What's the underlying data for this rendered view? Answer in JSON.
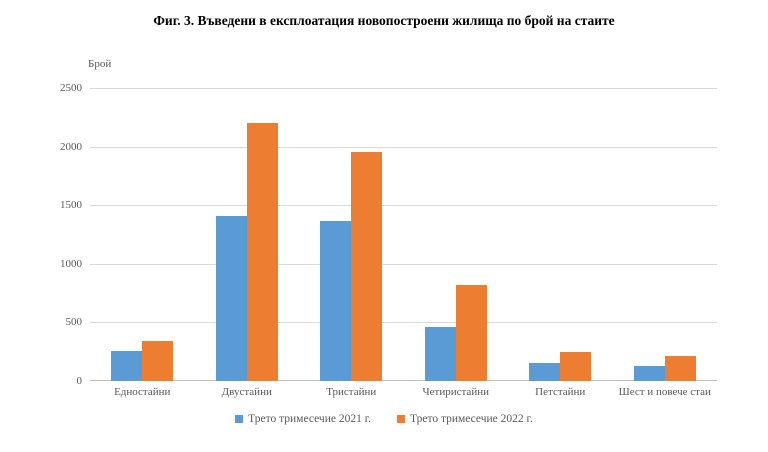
{
  "chart_data": {
    "type": "bar",
    "title": "Фиг. 3. Въведени в експлоатация новопостроени жилища по брой на стаите",
    "ylabel": "Брой",
    "xlabel": "",
    "categories": [
      "Едностайни",
      "Двустайни",
      "Тристайни",
      "Четиристайни",
      "Петстайни",
      "Шест и повече стаи"
    ],
    "series": [
      {
        "name": "Трето тримесечие 2021 г.",
        "color": "#5B9BD5",
        "values": [
          260,
          1410,
          1365,
          460,
          155,
          130
        ]
      },
      {
        "name": "Трето тримесечие 2022 г.",
        "color": "#ED7D31",
        "values": [
          345,
          2200,
          1955,
          815,
          245,
          215
        ]
      }
    ],
    "ylim": [
      0,
      2500
    ],
    "yticks": [
      0,
      500,
      1000,
      1500,
      2000,
      2500
    ],
    "grid": true,
    "gridline_color": "#D9D9D9",
    "axis_text_color": "#595959",
    "legend_position": "bottom"
  }
}
